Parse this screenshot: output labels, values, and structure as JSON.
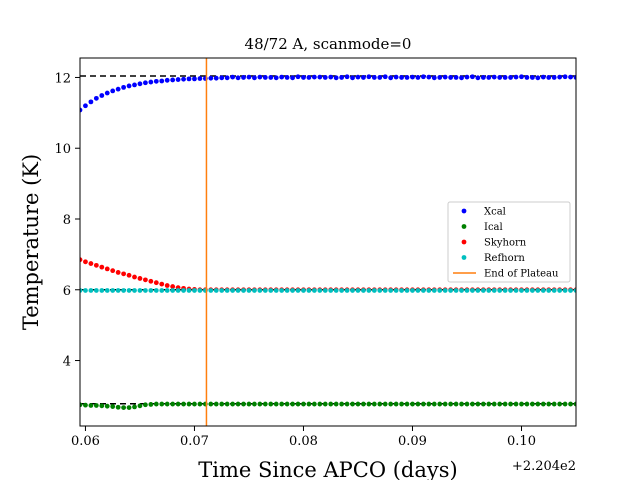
{
  "chart_data": {
    "type": "scatter",
    "title": "48/72 A, scanmode=0",
    "xlabel": "Time Since APCO (days)",
    "ylabel": "Temperature (K)",
    "x_offset_text": "+2.204e2",
    "xlim": [
      0.0595,
      0.105
    ],
    "ylim": [
      2.15,
      12.55
    ],
    "x_ticks": [
      0.06,
      0.07,
      0.08,
      0.09,
      0.1
    ],
    "x_tick_labels": [
      "0.06",
      "0.07",
      "0.08",
      "0.09",
      "0.10"
    ],
    "y_ticks": [
      4,
      6,
      8,
      10,
      12
    ],
    "y_tick_labels": [
      "4",
      "6",
      "8",
      "10",
      "12"
    ],
    "grid": false,
    "legend_position": "center-right",
    "reference_lines": [
      {
        "y": 12.04,
        "style": "dashed",
        "color": "#000000"
      },
      {
        "y": 2.78,
        "style": "dashed",
        "color": "#000000"
      },
      {
        "y": 6.0,
        "style": "dashed",
        "color": "#000000"
      }
    ],
    "plateau_end_x": 0.0711,
    "x": [
      0.0595,
      0.06,
      0.0605,
      0.061,
      0.0615,
      0.062,
      0.0625,
      0.063,
      0.0635,
      0.064,
      0.0645,
      0.065,
      0.0655,
      0.066,
      0.0665,
      0.067,
      0.0675,
      0.068,
      0.0685,
      0.069,
      0.0695,
      0.07,
      0.0705,
      0.071,
      0.0715,
      0.072,
      0.0725,
      0.073,
      0.0735,
      0.074,
      0.0745,
      0.075,
      0.0755,
      0.076,
      0.0765,
      0.077,
      0.0775,
      0.078,
      0.0785,
      0.079,
      0.0795,
      0.08,
      0.0805,
      0.081,
      0.0815,
      0.082,
      0.0825,
      0.083,
      0.0835,
      0.084,
      0.0845,
      0.085,
      0.0855,
      0.086,
      0.0865,
      0.087,
      0.0875,
      0.088,
      0.0885,
      0.089,
      0.0895,
      0.09,
      0.0905,
      0.091,
      0.0915,
      0.092,
      0.0925,
      0.093,
      0.0935,
      0.094,
      0.0945,
      0.095,
      0.0955,
      0.096,
      0.0965,
      0.097,
      0.0975,
      0.098,
      0.0985,
      0.099,
      0.0995,
      0.1,
      0.1005,
      0.101,
      0.1015,
      0.102,
      0.1025,
      0.103,
      0.1035,
      0.104,
      0.1045,
      0.105
    ],
    "series": [
      {
        "name": "Xcal",
        "color": "#0000ff",
        "values": [
          11.08,
          11.2,
          11.31,
          11.41,
          11.49,
          11.56,
          11.62,
          11.67,
          11.72,
          11.76,
          11.79,
          11.82,
          11.85,
          11.87,
          11.89,
          11.9,
          11.92,
          11.93,
          11.94,
          11.95,
          11.96,
          11.96,
          11.97,
          11.97,
          11.98,
          11.98,
          11.99,
          11.99,
          12.01,
          11.99,
          12.0,
          12.01,
          11.99,
          12.01,
          12.0,
          12.0,
          11.99,
          12.01,
          12.0,
          11.99,
          12.02,
          12.0,
          12.0,
          12.01,
          12.01,
          12.0,
          12.01,
          11.99,
          12.0,
          12.02,
          11.99,
          12.01,
          12.0,
          12.02,
          12.0,
          12.0,
          12.02,
          11.99,
          12.01,
          12.0,
          12.0,
          12.01,
          12.0,
          12.02,
          12.01,
          11.99,
          12.0,
          12.01,
          12.0,
          12.0,
          11.99,
          12.01,
          12.02,
          11.99,
          12.0,
          12.0,
          12.01,
          12.0,
          12.0,
          12.0,
          12.01,
          12.02,
          12.0,
          12.0,
          11.99,
          12.01,
          12.0,
          12.0,
          12.01,
          12.02,
          12.01,
          12.0
        ]
      },
      {
        "name": "Ical",
        "color": "#008000",
        "values": [
          2.75,
          2.74,
          2.73,
          2.73,
          2.72,
          2.71,
          2.7,
          2.68,
          2.67,
          2.67,
          2.69,
          2.72,
          2.75,
          2.76,
          2.77,
          2.77,
          2.77,
          2.77,
          2.77,
          2.77,
          2.77,
          2.77,
          2.77,
          2.77,
          2.77,
          2.77,
          2.77,
          2.77,
          2.77,
          2.77,
          2.77,
          2.77,
          2.77,
          2.77,
          2.77,
          2.77,
          2.77,
          2.77,
          2.77,
          2.77,
          2.77,
          2.77,
          2.77,
          2.77,
          2.77,
          2.77,
          2.77,
          2.77,
          2.77,
          2.77,
          2.77,
          2.77,
          2.77,
          2.77,
          2.77,
          2.77,
          2.77,
          2.77,
          2.77,
          2.77,
          2.77,
          2.77,
          2.77,
          2.77,
          2.77,
          2.77,
          2.77,
          2.77,
          2.77,
          2.77,
          2.77,
          2.77,
          2.77,
          2.77,
          2.77,
          2.77,
          2.77,
          2.77,
          2.77,
          2.77,
          2.77,
          2.77,
          2.77,
          2.77,
          2.77,
          2.77,
          2.77,
          2.77,
          2.77,
          2.77,
          2.77,
          2.77
        ]
      },
      {
        "name": "Skyhorn",
        "color": "#ff0000",
        "values": [
          6.85,
          6.79,
          6.74,
          6.69,
          6.64,
          6.59,
          6.54,
          6.49,
          6.45,
          6.41,
          6.36,
          6.32,
          6.28,
          6.24,
          6.2,
          6.16,
          6.12,
          6.09,
          6.06,
          6.04,
          6.02,
          6.01,
          6.0,
          6.0,
          6.0,
          6.0,
          6.0,
          6.0,
          6.0,
          6.0,
          6.0,
          6.0,
          6.0,
          6.0,
          6.0,
          6.0,
          6.0,
          6.0,
          6.0,
          6.0,
          6.0,
          6.0,
          6.0,
          6.0,
          6.0,
          6.0,
          6.0,
          6.0,
          6.0,
          6.0,
          6.0,
          6.0,
          6.0,
          6.0,
          6.0,
          6.0,
          6.0,
          6.0,
          6.0,
          6.0,
          6.0,
          6.0,
          6.0,
          6.0,
          6.0,
          6.0,
          6.0,
          6.0,
          6.0,
          6.0,
          6.0,
          6.0,
          6.0,
          6.0,
          6.0,
          6.0,
          6.0,
          6.0,
          6.0,
          6.0,
          6.0,
          6.0,
          6.0,
          6.0,
          6.0,
          6.0,
          6.0,
          6.0,
          6.0,
          6.0,
          6.0,
          6.0
        ]
      },
      {
        "name": "Refhorn",
        "color": "#00bfbf",
        "values": [
          5.98,
          5.98,
          5.98,
          5.98,
          5.98,
          5.98,
          5.98,
          5.98,
          5.98,
          5.98,
          5.98,
          5.98,
          5.98,
          5.98,
          5.98,
          5.98,
          5.98,
          5.98,
          5.98,
          5.98,
          5.98,
          5.98,
          5.98,
          5.98,
          5.98,
          5.98,
          5.98,
          5.98,
          5.98,
          5.98,
          5.98,
          5.98,
          5.98,
          5.98,
          5.98,
          5.98,
          5.98,
          5.98,
          5.98,
          5.98,
          5.98,
          5.98,
          5.98,
          5.98,
          5.98,
          5.98,
          5.98,
          5.98,
          5.98,
          5.98,
          5.98,
          5.98,
          5.98,
          5.98,
          5.98,
          5.98,
          5.98,
          5.98,
          5.98,
          5.98,
          5.98,
          5.98,
          5.98,
          5.98,
          5.98,
          5.98,
          5.98,
          5.98,
          5.98,
          5.98,
          5.98,
          5.98,
          5.98,
          5.98,
          5.98,
          5.98,
          5.98,
          5.98,
          5.98,
          5.98,
          5.98,
          5.98,
          5.98,
          5.98,
          5.98,
          5.98,
          5.98,
          5.98,
          5.98,
          5.98,
          5.98,
          5.98
        ]
      }
    ],
    "vline": {
      "name": "End of Plateau",
      "color": "#ff7f0e"
    }
  }
}
